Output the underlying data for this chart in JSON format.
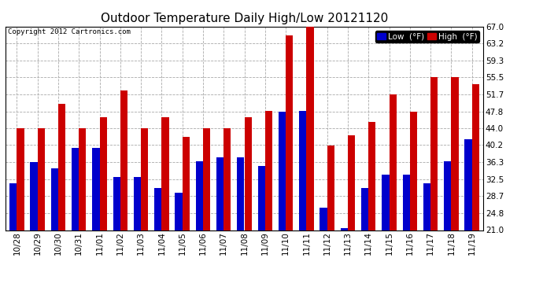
{
  "title": "Outdoor Temperature Daily High/Low 20121120",
  "copyright": "Copyright 2012 Cartronics.com",
  "categories": [
    "10/28",
    "10/29",
    "10/30",
    "10/31",
    "11/01",
    "11/02",
    "11/03",
    "11/04",
    "11/05",
    "11/06",
    "11/07",
    "11/08",
    "11/09",
    "11/10",
    "11/11",
    "11/12",
    "11/13",
    "11/14",
    "11/15",
    "11/16",
    "11/17",
    "11/18",
    "11/19"
  ],
  "high": [
    44.0,
    44.0,
    49.5,
    44.0,
    46.5,
    52.5,
    44.0,
    46.5,
    42.0,
    44.0,
    44.0,
    46.5,
    48.0,
    65.0,
    67.0,
    40.2,
    42.5,
    45.5,
    51.7,
    47.8,
    55.5,
    55.5,
    54.0
  ],
  "low": [
    31.5,
    36.3,
    35.0,
    39.5,
    39.5,
    33.0,
    33.0,
    30.5,
    29.5,
    36.5,
    37.5,
    37.5,
    35.5,
    47.8,
    48.0,
    26.0,
    21.5,
    30.5,
    33.5,
    33.5,
    31.5,
    36.5,
    41.5
  ],
  "ylim": [
    21.0,
    67.0
  ],
  "yticks": [
    21.0,
    24.8,
    28.7,
    32.5,
    36.3,
    40.2,
    44.0,
    47.8,
    51.7,
    55.5,
    59.3,
    63.2,
    67.0
  ],
  "bar_width": 0.35,
  "low_color": "#0000cc",
  "high_color": "#cc0000",
  "bg_color": "#ffffff",
  "grid_color": "#aaaaaa",
  "title_fontsize": 11,
  "legend_low": "Low  (°F)",
  "legend_high": "High  (°F)"
}
